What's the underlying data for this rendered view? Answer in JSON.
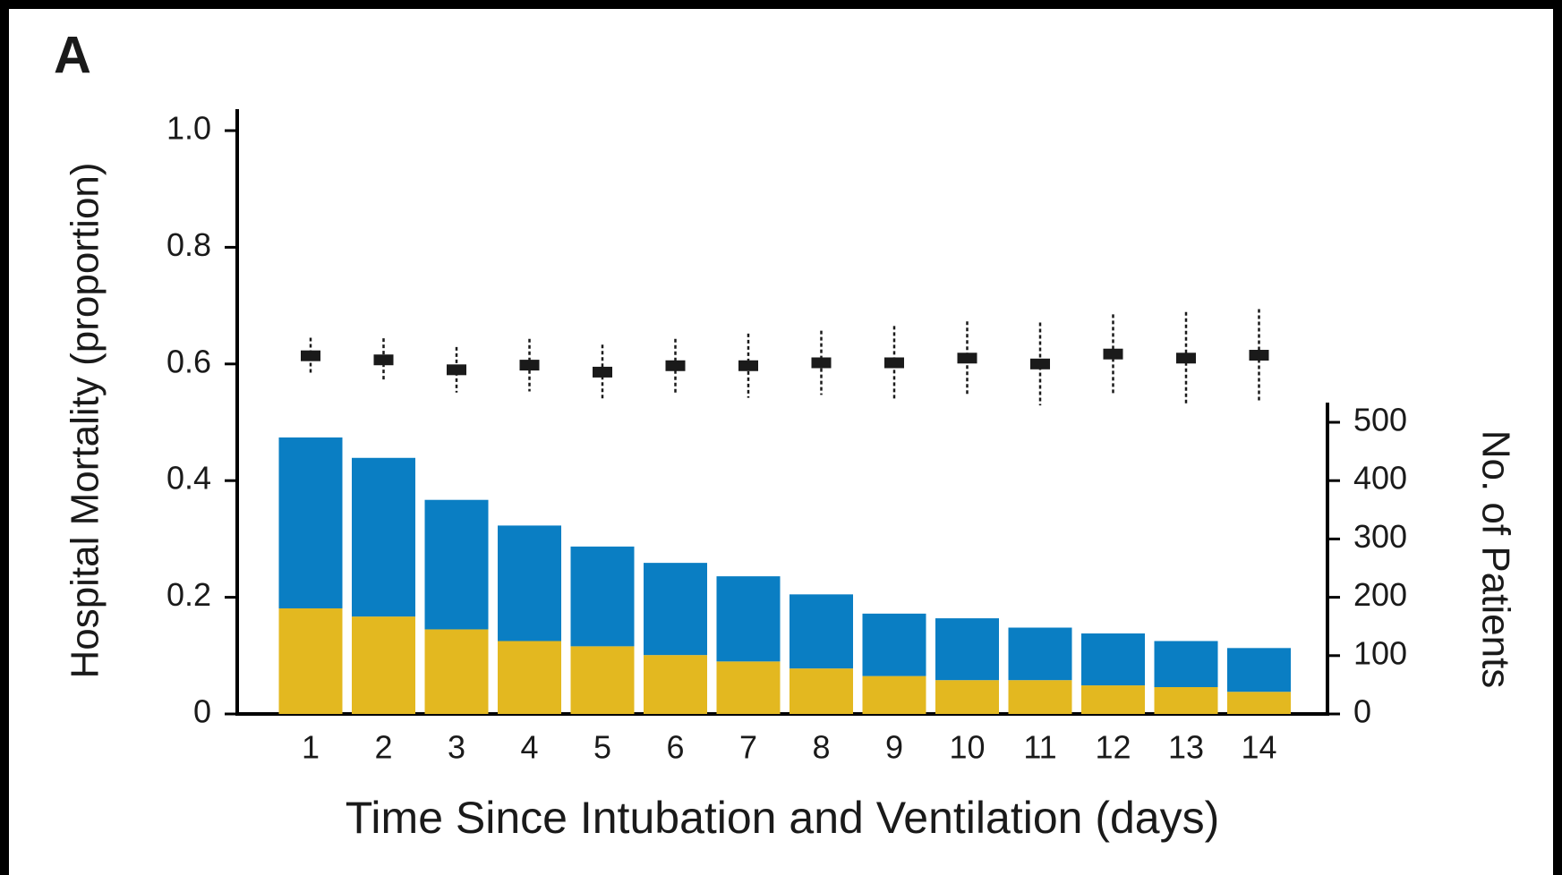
{
  "chart_data": {
    "type": "bar",
    "panel_label": "A",
    "x_label": "Time Since Intubation and Ventilation (days)",
    "y_label": "Hospital Mortality (proportion)",
    "y2_label": "No. of Patients",
    "categories": [
      "1",
      "2",
      "3",
      "4",
      "5",
      "6",
      "7",
      "8",
      "9",
      "10",
      "11",
      "12",
      "13",
      "14"
    ],
    "stacked": true,
    "series": [
      {
        "type": "errorbar",
        "color": "#1a1a1a",
        "values": [
          0.614,
          0.607,
          0.59,
          0.598,
          0.586,
          0.597,
          0.597,
          0.602,
          0.602,
          0.61,
          0.6,
          0.617,
          0.61,
          0.615
        ],
        "errors": [
          0.031,
          0.037,
          0.039,
          0.045,
          0.047,
          0.046,
          0.055,
          0.055,
          0.063,
          0.063,
          0.071,
          0.068,
          0.079,
          0.079
        ]
      },
      {
        "type": "bar",
        "axis": "y2",
        "color": "#e3b820",
        "values": [
          181,
          167,
          145,
          125,
          116,
          101,
          90,
          78,
          65,
          58,
          58,
          49,
          46,
          38
        ]
      },
      {
        "type": "bar",
        "axis": "y2",
        "color": "#0a7ec3",
        "values": [
          293,
          272,
          222,
          198,
          171,
          158,
          146,
          127,
          107,
          106,
          90,
          89,
          79,
          75
        ]
      }
    ],
    "ylim": [
      0,
      1
    ],
    "yticks": [
      0,
      0.2,
      0.4,
      0.6,
      0.8,
      {
        "value": 1,
        "label": "1.0"
      }
    ],
    "y2lim": [
      0,
      500
    ],
    "y2ticks": [
      0,
      100,
      200,
      300,
      400,
      500
    ]
  }
}
